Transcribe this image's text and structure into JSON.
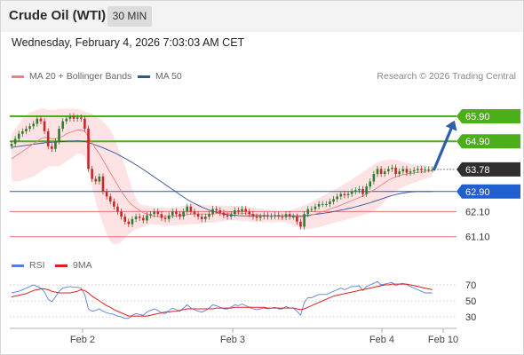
{
  "header": {
    "title": "Crude Oil (WTI)",
    "interval": "30 MIN",
    "datetime": "Wednesday, February 4, 2026 7:03:03 AM CET"
  },
  "legend": {
    "ma20_label": "MA 20 + Bollinger Bands",
    "ma50_label": "MA 50",
    "credit": "Research © 2026 Trading Central"
  },
  "rsi_legend": {
    "rsi_label": "RSI",
    "ma_label": "9MA"
  },
  "colors": {
    "ma20": "#f08080",
    "ma50": "#2f5597",
    "band_fill": "#fde3e3",
    "candle_up": "#2e7d32",
    "candle_down": "#c62828",
    "resistance": "#4caf1a",
    "pivot": "#1f5fcf",
    "support": "#e57373",
    "current": "#333333",
    "arrow": "#2c5fa8",
    "rsi": "#5b7fd6",
    "rsi_ma": "#e02020"
  },
  "chart_data": {
    "type": "candlestick",
    "ylim": [
      60.7,
      67.1
    ],
    "x_labels": [
      "Feb 2",
      "Feb 3",
      "Feb 4",
      "Feb 10"
    ],
    "levels": [
      {
        "label": "65.90",
        "value": 65.9,
        "kind": "resistance"
      },
      {
        "label": "64.90",
        "value": 64.9,
        "kind": "resistance"
      },
      {
        "label": "63.78",
        "value": 63.78,
        "kind": "current"
      },
      {
        "label": "62.90",
        "value": 62.9,
        "kind": "pivot"
      },
      {
        "label": "62.10",
        "value": 62.1,
        "kind": "support"
      },
      {
        "label": "61.10",
        "value": 61.1,
        "kind": "support"
      }
    ],
    "close": [
      64.8,
      65.0,
      65.2,
      65.3,
      65.4,
      65.5,
      65.6,
      65.8,
      65.7,
      65.3,
      64.7,
      64.6,
      64.9,
      65.4,
      65.7,
      65.8,
      65.9,
      65.8,
      65.85,
      65.8,
      65.4,
      63.8,
      63.4,
      63.3,
      63.5,
      62.9,
      62.7,
      62.5,
      62.3,
      62.1,
      61.9,
      61.7,
      61.6,
      61.8,
      61.9,
      61.85,
      61.75,
      61.95,
      62.0,
      62.1,
      62.0,
      61.85,
      61.8,
      61.95,
      62.1,
      62.0,
      61.9,
      62.1,
      62.3,
      62.1,
      62.0,
      61.9,
      61.8,
      61.9,
      62.0,
      62.2,
      62.15,
      62.05,
      61.95,
      61.9,
      62.0,
      62.15,
      62.1,
      62.2,
      62.1,
      62.0,
      61.9,
      61.85,
      61.9,
      61.95,
      61.9,
      61.92,
      61.96,
      61.9,
      61.88,
      62.0,
      61.9,
      61.9,
      61.7,
      61.5,
      62.0,
      62.2,
      62.2,
      62.3,
      62.4,
      62.4,
      62.4,
      62.5,
      62.6,
      62.7,
      62.8,
      62.75,
      62.8,
      62.9,
      62.95,
      63.0,
      62.8,
      63.1,
      63.3,
      63.6,
      63.8,
      63.6,
      63.7,
      63.8,
      63.85,
      63.6,
      63.7,
      63.8,
      63.65,
      63.7,
      63.75,
      63.8,
      63.75,
      63.78,
      63.78,
      63.78
    ],
    "ma20": [
      64.2,
      64.3,
      64.4,
      64.5,
      64.6,
      64.7,
      64.8,
      64.9,
      65.0,
      65.05,
      65.05,
      65.0,
      65.0,
      65.05,
      65.1,
      65.2,
      65.25,
      65.3,
      65.35,
      65.35,
      65.3,
      65.1,
      64.85,
      64.6,
      64.4,
      64.15,
      63.9,
      63.65,
      63.4,
      63.15,
      62.9,
      62.7,
      62.5,
      62.35,
      62.25,
      62.15,
      62.05,
      62.0,
      61.95,
      61.92,
      61.9,
      61.9,
      61.9,
      61.9,
      61.92,
      61.93,
      61.94,
      61.96,
      61.98,
      62.0,
      62.0,
      62.0,
      62.0,
      62.0,
      62.0,
      62.0,
      62.02,
      62.03,
      62.04,
      62.04,
      62.04,
      62.04,
      62.04,
      62.03,
      62.02,
      62.0,
      61.98,
      61.97,
      61.96,
      61.95,
      61.94,
      61.93,
      61.92,
      61.92,
      61.92,
      61.92,
      61.91,
      61.9,
      61.89,
      61.88,
      61.9,
      61.92,
      61.96,
      62.0,
      62.05,
      62.1,
      62.15,
      62.2,
      62.25,
      62.3,
      62.36,
      62.42,
      62.48,
      62.54,
      62.6,
      62.66,
      62.72,
      62.8,
      62.88,
      62.96,
      63.05,
      63.15,
      63.25,
      63.35,
      63.42,
      63.48,
      63.53,
      63.57,
      63.6,
      63.62,
      63.64,
      63.66,
      63.68,
      63.7,
      63.72,
      63.73
    ],
    "ma50": [
      64.65,
      64.68,
      64.7,
      64.72,
      64.74,
      64.76,
      64.78,
      64.8,
      64.82,
      64.84,
      64.85,
      64.86,
      64.87,
      64.88,
      64.89,
      64.9,
      64.91,
      64.91,
      64.92,
      64.91,
      64.89,
      64.85,
      64.8,
      64.75,
      64.7,
      64.64,
      64.58,
      64.52,
      64.45,
      64.38,
      64.3,
      64.22,
      64.14,
      64.05,
      63.96,
      63.87,
      63.78,
      63.68,
      63.58,
      63.48,
      63.38,
      63.28,
      63.18,
      63.08,
      62.98,
      62.88,
      62.78,
      62.68,
      62.58,
      62.5,
      62.42,
      62.35,
      62.28,
      62.22,
      62.16,
      62.11,
      62.07,
      62.03,
      62.0,
      61.98,
      61.96,
      61.95,
      61.94,
      61.93,
      61.93,
      61.93,
      61.93,
      61.93,
      61.93,
      61.93,
      61.93,
      61.93,
      61.93,
      61.93,
      61.93,
      61.93,
      61.93,
      61.93,
      61.93,
      61.93,
      61.94,
      61.95,
      61.97,
      61.99,
      62.01,
      62.03,
      62.05,
      62.07,
      62.1,
      62.13,
      62.16,
      62.19,
      62.22,
      62.25,
      62.29,
      62.33,
      62.37,
      62.41,
      62.45,
      62.5,
      62.55,
      62.6,
      62.65,
      62.7,
      62.74,
      62.78,
      62.81,
      62.84,
      62.86,
      62.88,
      62.89,
      62.9,
      62.9,
      62.9,
      62.9,
      62.9
    ],
    "bb_upper": [
      65.2,
      65.4,
      65.6,
      65.8,
      65.95,
      66.05,
      66.1,
      66.15,
      66.2,
      66.2,
      66.15,
      66.15,
      66.15,
      66.2,
      66.2,
      66.2,
      66.2,
      66.2,
      66.18,
      66.15,
      66.1,
      66.05,
      66.0,
      65.9,
      65.8,
      65.7,
      65.55,
      65.35,
      65.05,
      64.7,
      64.3,
      63.9,
      63.45,
      63.0,
      62.65,
      62.4,
      62.35,
      62.35,
      62.3,
      62.28,
      62.27,
      62.26,
      62.25,
      62.25,
      62.26,
      62.27,
      62.3,
      62.33,
      62.37,
      62.4,
      62.4,
      62.4,
      62.38,
      62.36,
      62.34,
      62.34,
      62.34,
      62.34,
      62.34,
      62.33,
      62.33,
      62.33,
      62.32,
      62.31,
      62.3,
      62.28,
      62.26,
      62.24,
      62.22,
      62.2,
      62.18,
      62.16,
      62.14,
      62.13,
      62.12,
      62.12,
      62.15,
      62.2,
      62.25,
      62.3,
      62.36,
      62.42,
      62.48,
      62.56,
      62.64,
      62.72,
      62.8,
      62.88,
      62.96,
      63.04,
      63.12,
      63.2,
      63.28,
      63.38,
      63.48,
      63.58,
      63.68,
      63.78,
      63.88,
      63.98,
      64.06,
      64.12,
      64.16,
      64.18,
      64.18,
      64.16,
      64.12,
      64.08,
      64.04,
      64.0,
      63.98,
      63.96,
      63.95,
      63.94,
      63.93,
      63.92
    ],
    "bb_lower": [
      63.3,
      63.3,
      63.3,
      63.35,
      63.4,
      63.45,
      63.5,
      63.6,
      63.7,
      63.8,
      63.9,
      63.9,
      63.9,
      63.9,
      64.0,
      64.1,
      64.2,
      64.3,
      64.4,
      64.4,
      64.3,
      63.8,
      63.1,
      62.5,
      62.0,
      61.6,
      61.2,
      60.9,
      60.8,
      60.8,
      60.9,
      61.05,
      61.2,
      61.3,
      61.4,
      61.45,
      61.5,
      61.55,
      61.58,
      61.6,
      61.58,
      61.56,
      61.54,
      61.54,
      61.55,
      61.56,
      61.56,
      61.57,
      61.58,
      61.6,
      61.6,
      61.6,
      61.62,
      61.64,
      61.66,
      61.66,
      61.68,
      61.7,
      61.72,
      61.74,
      61.75,
      61.75,
      61.74,
      61.73,
      61.72,
      61.7,
      61.68,
      61.68,
      61.68,
      61.68,
      61.68,
      61.68,
      61.68,
      61.68,
      61.68,
      61.68,
      61.62,
      61.55,
      61.48,
      61.42,
      61.4,
      61.4,
      61.42,
      61.45,
      61.48,
      61.52,
      61.56,
      61.6,
      61.64,
      61.68,
      61.72,
      61.76,
      61.8,
      61.84,
      61.88,
      61.92,
      61.96,
      62.0,
      62.05,
      62.1,
      62.2,
      62.35,
      62.5,
      62.65,
      62.8,
      62.9,
      63.0,
      63.08,
      63.14,
      63.2,
      63.25,
      63.3,
      63.35,
      63.4,
      63.45,
      63.5
    ],
    "rsi": {
      "ylim": [
        20,
        80
      ],
      "ticks": [
        "70",
        "50",
        "30"
      ],
      "tick_values": [
        70,
        50,
        30
      ],
      "rsi": [
        60,
        61,
        62,
        64,
        66,
        68,
        70,
        68,
        66,
        61,
        52,
        49,
        55,
        62,
        66,
        67,
        68,
        67,
        67,
        66,
        58,
        40,
        37,
        38,
        40,
        37,
        35,
        34,
        33,
        31,
        30,
        28,
        28,
        32,
        34,
        33,
        32,
        36,
        38,
        40,
        38,
        35,
        34,
        38,
        41,
        39,
        37,
        41,
        45,
        41,
        39,
        37,
        36,
        38,
        41,
        45,
        44,
        42,
        40,
        40,
        42,
        45,
        44,
        46,
        44,
        42,
        40,
        39,
        40,
        41,
        40,
        41,
        42,
        40,
        40,
        43,
        41,
        41,
        37,
        32,
        48,
        54,
        54,
        56,
        58,
        58,
        58,
        60,
        62,
        64,
        66,
        64,
        66,
        68,
        68,
        69,
        63,
        68,
        70,
        72,
        74,
        70,
        71,
        72,
        73,
        69,
        71,
        72,
        70,
        68,
        66,
        64,
        62,
        60,
        60,
        60
      ],
      "ma": [
        55,
        56,
        57,
        58,
        59,
        61,
        63,
        64,
        65,
        65,
        64,
        62,
        61,
        60,
        60,
        60,
        60,
        61,
        62,
        64,
        63,
        60,
        56,
        53,
        50,
        47,
        44,
        42,
        39,
        37,
        35,
        33,
        31,
        31,
        31,
        31,
        31,
        31,
        32,
        33,
        34,
        35,
        36,
        36,
        37,
        37,
        38,
        39,
        40,
        40,
        40,
        40,
        40,
        40,
        40,
        40,
        41,
        41,
        41,
        41,
        41,
        42,
        42,
        42,
        42,
        42,
        42,
        42,
        42,
        42,
        41,
        41,
        41,
        41,
        41,
        41,
        41,
        41,
        40,
        39,
        40,
        42,
        44,
        46,
        48,
        50,
        52,
        54,
        56,
        57,
        58,
        59,
        60,
        61,
        62,
        63,
        64,
        65,
        66,
        67,
        68,
        69,
        70,
        70,
        71,
        71,
        71,
        71,
        71,
        70,
        69,
        68,
        67,
        66,
        65,
        64
      ]
    }
  }
}
